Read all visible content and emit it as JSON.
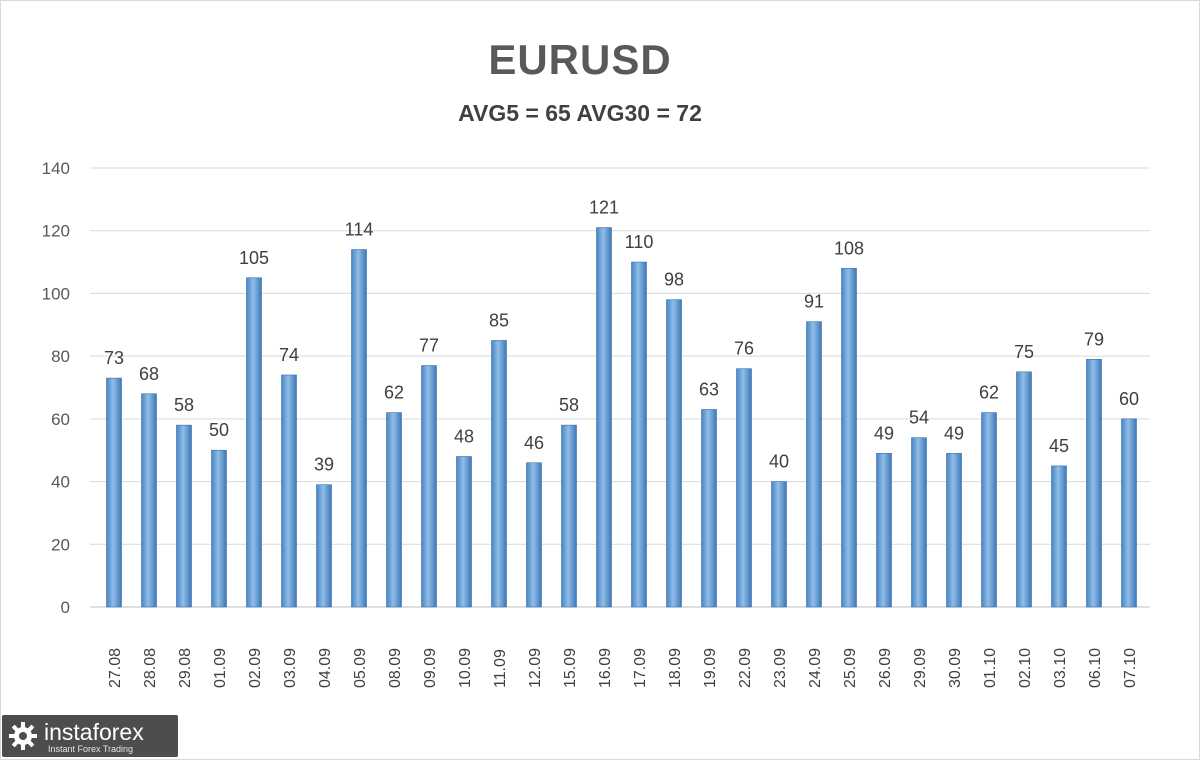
{
  "chart_data": {
    "type": "bar",
    "title": "EURUSD",
    "subtitle": "AVG5 = 65 AVG30 = 72",
    "xlabel": "",
    "ylabel": "",
    "ylim": [
      0,
      140
    ],
    "yticks": [
      0,
      20,
      40,
      60,
      80,
      100,
      120,
      140
    ],
    "grid": true,
    "categories": [
      "27.08",
      "28.08",
      "29.08",
      "01.09",
      "02.09",
      "03.09",
      "04.09",
      "05.09",
      "08.09",
      "09.09",
      "10.09",
      "11.09",
      "12.09",
      "15.09",
      "16.09",
      "17.09",
      "18.09",
      "19.09",
      "22.09",
      "23.09",
      "24.09",
      "25.09",
      "26.09",
      "29.09",
      "30.09",
      "01.10",
      "02.10",
      "03.10",
      "06.10",
      "07.10"
    ],
    "values": [
      73,
      68,
      58,
      50,
      105,
      74,
      39,
      114,
      62,
      77,
      48,
      85,
      46,
      58,
      121,
      110,
      98,
      63,
      76,
      40,
      91,
      108,
      49,
      54,
      49,
      62,
      75,
      45,
      79,
      60
    ],
    "bar_color": "#5b9bd5"
  },
  "logo": {
    "name": "instaforex",
    "tagline": "Instant Forex Trading"
  }
}
